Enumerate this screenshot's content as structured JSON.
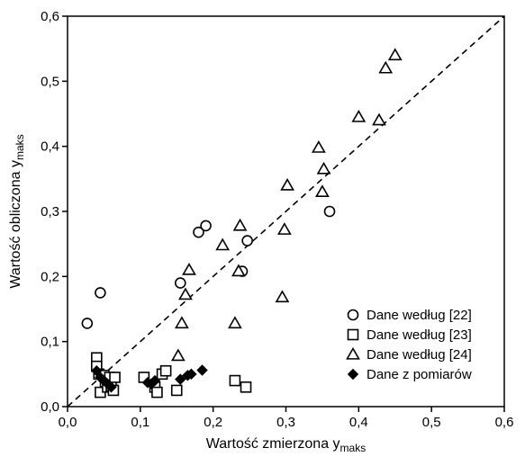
{
  "chart_data": {
    "type": "scatter",
    "xlabel": "Wartość zmierzona y",
    "xlabel_sub": "maks",
    "ylabel": "Wartość obliczona y",
    "ylabel_sub": "maks",
    "xlim": [
      0,
      0.6
    ],
    "ylim": [
      0,
      0.6
    ],
    "xticks": [
      0,
      0.1,
      0.2,
      0.3,
      0.4,
      0.5,
      0.6
    ],
    "yticks": [
      0,
      0.1,
      0.2,
      0.3,
      0.4,
      0.5,
      0.6
    ],
    "xtick_labels": [
      "0,0",
      "0,1",
      "0,2",
      "0,3",
      "0,4",
      "0,5",
      "0,6"
    ],
    "ytick_labels": [
      "0,0",
      "0,1",
      "0,2",
      "0,3",
      "0,4",
      "0,5",
      "0,6"
    ],
    "grid": false,
    "legend_position": "bottom-right",
    "reference_line": {
      "style": "dashed",
      "x": [
        0,
        0.6
      ],
      "y": [
        0,
        0.6
      ]
    },
    "series": [
      {
        "name": "Dane według [22]",
        "marker": "circle-open",
        "x": [
          0.027,
          0.045,
          0.155,
          0.18,
          0.19,
          0.24,
          0.247,
          0.36
        ],
        "y": [
          0.128,
          0.175,
          0.19,
          0.268,
          0.278,
          0.208,
          0.255,
          0.3
        ]
      },
      {
        "name": "Dane według [23]",
        "marker": "square-open",
        "x": [
          0.04,
          0.04,
          0.043,
          0.045,
          0.05,
          0.052,
          0.055,
          0.058,
          0.06,
          0.063,
          0.065,
          0.105,
          0.12,
          0.123,
          0.13,
          0.135,
          0.15,
          0.23,
          0.245
        ],
        "y": [
          0.075,
          0.062,
          0.05,
          0.022,
          0.048,
          0.038,
          0.03,
          0.045,
          0.032,
          0.025,
          0.045,
          0.045,
          0.03,
          0.022,
          0.05,
          0.055,
          0.025,
          0.04,
          0.03
        ]
      },
      {
        "name": "Dane według [24]",
        "marker": "triangle-open",
        "x": [
          0.152,
          0.157,
          0.162,
          0.167,
          0.213,
          0.23,
          0.235,
          0.237,
          0.295,
          0.298,
          0.302,
          0.345,
          0.35,
          0.352,
          0.4,
          0.428,
          0.437,
          0.45
        ],
        "y": [
          0.078,
          0.128,
          0.172,
          0.21,
          0.248,
          0.128,
          0.208,
          0.278,
          0.168,
          0.272,
          0.34,
          0.398,
          0.33,
          0.365,
          0.445,
          0.44,
          0.52,
          0.54
        ],
        "notes": ""
      },
      {
        "name": "Dane z pomiarów",
        "marker": "diamond-filled",
        "x": [
          0.04,
          0.045,
          0.05,
          0.055,
          0.06,
          0.11,
          0.115,
          0.12,
          0.155,
          0.165,
          0.17,
          0.185
        ],
        "y": [
          0.055,
          0.045,
          0.04,
          0.035,
          0.03,
          0.037,
          0.035,
          0.04,
          0.042,
          0.048,
          0.05,
          0.056
        ]
      }
    ]
  }
}
